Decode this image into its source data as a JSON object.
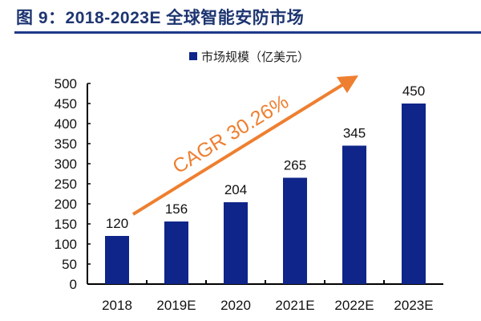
{
  "title": "图 9：2018-2023E 全球智能安防市场",
  "chart_data": {
    "type": "bar",
    "title": "",
    "categories": [
      "2018",
      "2019E",
      "2020",
      "2021E",
      "2022E",
      "2023E"
    ],
    "series": [
      {
        "name": "市场规模（亿美元）",
        "values": [
          120,
          156,
          204,
          265,
          345,
          450
        ]
      }
    ],
    "ylim": [
      0,
      500
    ],
    "yticks": [
      0,
      50,
      100,
      150,
      200,
      250,
      300,
      350,
      400,
      450,
      500
    ],
    "legend": "top-center",
    "grid": false,
    "annotation": "CAGR 30.26%",
    "colors": {
      "bar": "#0f2589",
      "arrow": "#ee7f30",
      "title": "#1d3570"
    }
  }
}
